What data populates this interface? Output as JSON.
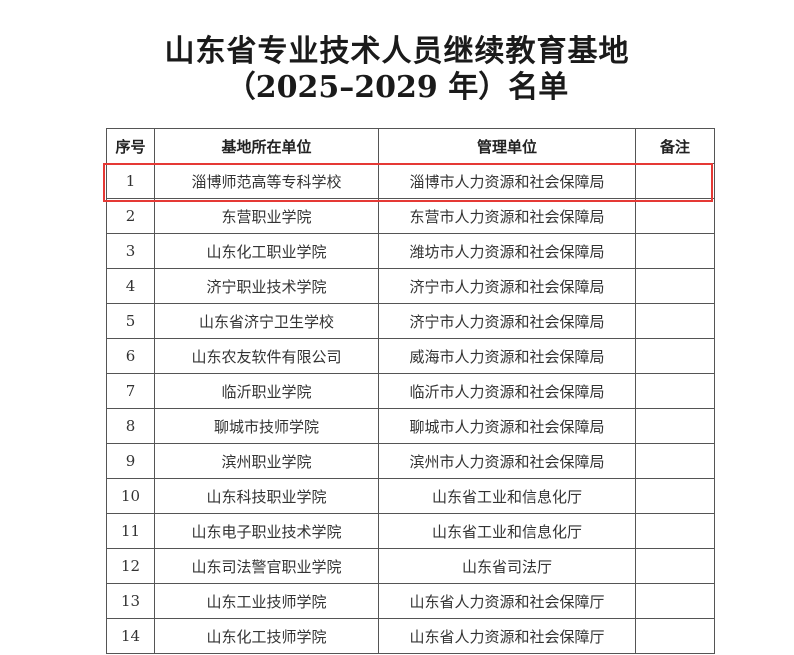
{
  "title": {
    "line1": "山东省专业技术人员继续教育基地",
    "line2": "（2025–2029 年）名单"
  },
  "table": {
    "headers": [
      "序号",
      "基地所在单位",
      "管理单位",
      "备注"
    ],
    "rows": [
      {
        "no": "1",
        "unit": "淄博师范高等专科学校",
        "manager": "淄博市人力资源和社会保障局",
        "note": ""
      },
      {
        "no": "2",
        "unit": "东营职业学院",
        "manager": "东营市人力资源和社会保障局",
        "note": ""
      },
      {
        "no": "3",
        "unit": "山东化工职业学院",
        "manager": "潍坊市人力资源和社会保障局",
        "note": ""
      },
      {
        "no": "4",
        "unit": "济宁职业技术学院",
        "manager": "济宁市人力资源和社会保障局",
        "note": ""
      },
      {
        "no": "5",
        "unit": "山东省济宁卫生学校",
        "manager": "济宁市人力资源和社会保障局",
        "note": ""
      },
      {
        "no": "6",
        "unit": "山东农友软件有限公司",
        "manager": "威海市人力资源和社会保障局",
        "note": ""
      },
      {
        "no": "7",
        "unit": "临沂职业学院",
        "manager": "临沂市人力资源和社会保障局",
        "note": ""
      },
      {
        "no": "8",
        "unit": "聊城市技师学院",
        "manager": "聊城市人力资源和社会保障局",
        "note": ""
      },
      {
        "no": "9",
        "unit": "滨州职业学院",
        "manager": "滨州市人力资源和社会保障局",
        "note": ""
      },
      {
        "no": "10",
        "unit": "山东科技职业学院",
        "manager": "山东省工业和信息化厅",
        "note": ""
      },
      {
        "no": "11",
        "unit": "山东电子职业技术学院",
        "manager": "山东省工业和信息化厅",
        "note": ""
      },
      {
        "no": "12",
        "unit": "山东司法警官职业学院",
        "manager": "山东省司法厅",
        "note": ""
      },
      {
        "no": "13",
        "unit": "山东工业技师学院",
        "manager": "山东省人力资源和社会保障厅",
        "note": ""
      },
      {
        "no": "14",
        "unit": "山东化工技师学院",
        "manager": "山东省人力资源和社会保障厅",
        "note": ""
      }
    ]
  },
  "highlight": {
    "row": "1",
    "color": "#e53935"
  }
}
